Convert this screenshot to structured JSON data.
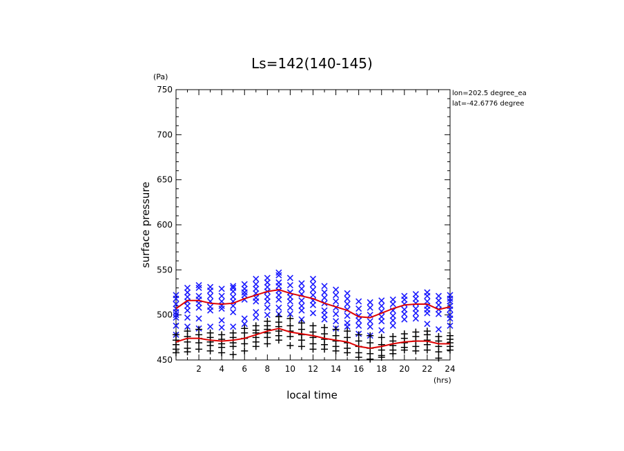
{
  "chart_data": {
    "type": "scatter",
    "title": "Ls=142(140-145)",
    "xlabel": "local time",
    "ylabel": "surface pressure",
    "x_unit": "(hrs)",
    "y_unit": "(Pa)",
    "xlim": [
      0,
      24
    ],
    "ylim": [
      450,
      750
    ],
    "x_ticks": [
      2,
      4,
      6,
      8,
      10,
      12,
      14,
      16,
      18,
      20,
      22,
      24
    ],
    "y_ticks": [
      450,
      500,
      550,
      600,
      650,
      700,
      750
    ],
    "annotations": [
      "lon=202.5 degree_ea",
      "lat=-42.6776 degree"
    ],
    "grid": false,
    "legend": "none",
    "colors": {
      "upper": "#1a1aff",
      "lower": "#000000",
      "curve": "#dd0000"
    },
    "series": [
      {
        "marker": "x",
        "color": "#1a1aff",
        "x": [
          0,
          0,
          0,
          0,
          0,
          0,
          0,
          0,
          0,
          1,
          1,
          1,
          1,
          1,
          1,
          1,
          1,
          2,
          2,
          2,
          2,
          2,
          2,
          2,
          2,
          3,
          3,
          3,
          3,
          3,
          3,
          3,
          4,
          4,
          4,
          4,
          4,
          4,
          4,
          5,
          5,
          5,
          5,
          5,
          5,
          5,
          5,
          6,
          6,
          6,
          6,
          6,
          6,
          6,
          7,
          7,
          7,
          7,
          7,
          7,
          7,
          7,
          8,
          8,
          8,
          8,
          8,
          8,
          8,
          8,
          9,
          9,
          9,
          9,
          9,
          9,
          9,
          9,
          9,
          10,
          10,
          10,
          10,
          10,
          10,
          10,
          11,
          11,
          11,
          11,
          11,
          11,
          11,
          12,
          12,
          12,
          12,
          12,
          12,
          12,
          13,
          13,
          13,
          13,
          13,
          13,
          13,
          14,
          14,
          14,
          14,
          14,
          14,
          14,
          15,
          15,
          15,
          15,
          15,
          15,
          15,
          16,
          16,
          16,
          16,
          16,
          16,
          17,
          17,
          17,
          17,
          17,
          17,
          18,
          18,
          18,
          18,
          18,
          18,
          19,
          19,
          19,
          19,
          19,
          19,
          20,
          20,
          20,
          20,
          20,
          20,
          21,
          21,
          21,
          21,
          21,
          21,
          22,
          22,
          22,
          22,
          22,
          22,
          22,
          23,
          23,
          23,
          23,
          23,
          23,
          24,
          24,
          24,
          24,
          24,
          24,
          24,
          24
        ],
        "y": [
          522,
          518,
          512,
          507,
          503,
          500,
          497,
          488,
          478,
          530,
          525,
          520,
          515,
          510,
          505,
          497,
          487,
          533,
          530,
          521,
          517,
          513,
          508,
          496,
          485,
          531,
          527,
          521,
          515,
          509,
          505,
          487,
          529,
          521,
          515,
          510,
          507,
          494,
          486,
          532,
          530,
          526,
          520,
          515,
          510,
          503,
          487,
          534,
          529,
          525,
          522,
          517,
          496,
          490,
          540,
          534,
          529,
          524,
          519,
          515,
          503,
          497,
          541,
          536,
          531,
          526,
          520,
          515,
          508,
          500,
          547,
          544,
          536,
          532,
          527,
          522,
          517,
          508,
          501,
          541,
          533,
          525,
          520,
          515,
          508,
          501,
          535,
          529,
          523,
          516,
          510,
          505,
          495,
          540,
          534,
          528,
          522,
          516,
          511,
          502,
          532,
          525,
          519,
          513,
          505,
          500,
          495,
          528,
          522,
          515,
          508,
          501,
          493,
          485,
          524,
          518,
          512,
          506,
          499,
          491,
          487,
          515,
          507,
          499,
          494,
          488,
          479,
          514,
          508,
          500,
          493,
          487,
          477,
          516,
          510,
          504,
          498,
          493,
          483,
          517,
          512,
          505,
          499,
          494,
          488,
          521,
          517,
          512,
          506,
          501,
          495,
          523,
          518,
          513,
          507,
          502,
          496,
          525,
          521,
          515,
          510,
          506,
          502,
          490,
          521,
          516,
          511,
          506,
          501,
          484,
          522,
          518,
          515,
          510,
          506,
          500,
          496,
          488
        ]
      },
      {
        "marker": "+",
        "color": "#000000",
        "x": [
          0,
          0,
          0,
          0,
          0,
          1,
          1,
          1,
          1,
          1,
          2,
          2,
          2,
          2,
          2,
          3,
          3,
          3,
          3,
          3,
          4,
          4,
          4,
          4,
          4,
          5,
          5,
          5,
          5,
          5,
          6,
          6,
          6,
          6,
          6,
          7,
          7,
          7,
          7,
          7,
          7,
          8,
          8,
          8,
          8,
          8,
          8,
          9,
          9,
          9,
          9,
          9,
          9,
          10,
          10,
          10,
          10,
          10,
          11,
          11,
          11,
          11,
          11,
          12,
          12,
          12,
          12,
          12,
          13,
          13,
          13,
          13,
          13,
          14,
          14,
          14,
          14,
          14,
          15,
          15,
          15,
          15,
          15,
          16,
          16,
          16,
          16,
          16,
          17,
          17,
          17,
          17,
          17,
          18,
          18,
          18,
          18,
          18,
          19,
          19,
          19,
          19,
          19,
          20,
          20,
          20,
          20,
          20,
          21,
          21,
          21,
          21,
          21,
          22,
          22,
          22,
          22,
          22,
          23,
          23,
          23,
          23,
          23,
          24,
          24,
          24,
          24,
          24
        ],
        "y": [
          478,
          472,
          467,
          462,
          458,
          482,
          476,
          470,
          463,
          459,
          484,
          478,
          474,
          469,
          462,
          480,
          475,
          470,
          466,
          460,
          478,
          473,
          468,
          464,
          458,
          480,
          475,
          469,
          465,
          456,
          485,
          480,
          474,
          468,
          460,
          488,
          483,
          480,
          475,
          470,
          465,
          493,
          488,
          484,
          480,
          475,
          468,
          498,
          492,
          487,
          482,
          477,
          472,
          496,
          488,
          482,
          476,
          466,
          491,
          484,
          478,
          472,
          465,
          488,
          481,
          475,
          468,
          462,
          486,
          479,
          473,
          467,
          462,
          484,
          477,
          471,
          465,
          460,
          482,
          475,
          469,
          463,
          458,
          478,
          471,
          465,
          458,
          453,
          477,
          469,
          463,
          457,
          451,
          475,
          467,
          461,
          455,
          453,
          476,
          471,
          466,
          461,
          457,
          479,
          474,
          469,
          464,
          461,
          481,
          476,
          471,
          465,
          460,
          482,
          478,
          472,
          467,
          461,
          476,
          471,
          465,
          459,
          452,
          477,
          473,
          469,
          465,
          461
        ]
      },
      {
        "type": "line",
        "color": "#dd0000",
        "x": [
          0,
          1,
          2,
          3,
          4,
          5,
          6,
          7,
          8,
          9,
          10,
          11,
          12,
          13,
          14,
          15,
          16,
          17,
          18,
          19,
          20,
          21,
          22,
          23,
          24
        ],
        "y": [
          507,
          516,
          516,
          513,
          512,
          513,
          518,
          522,
          526,
          528,
          524,
          521,
          518,
          513,
          509,
          505,
          498,
          497,
          502,
          507,
          511,
          512,
          512,
          506,
          509
        ]
      },
      {
        "type": "line",
        "color": "#dd0000",
        "x": [
          0,
          1,
          2,
          3,
          4,
          5,
          6,
          7,
          8,
          9,
          10,
          11,
          12,
          13,
          14,
          15,
          16,
          17,
          18,
          19,
          20,
          21,
          22,
          23,
          24
        ],
        "y": [
          470,
          474,
          474,
          472,
          471,
          472,
          474,
          478,
          482,
          485,
          481,
          479,
          477,
          474,
          472,
          470,
          465,
          463,
          465,
          468,
          470,
          471,
          471,
          468,
          468
        ]
      }
    ]
  }
}
